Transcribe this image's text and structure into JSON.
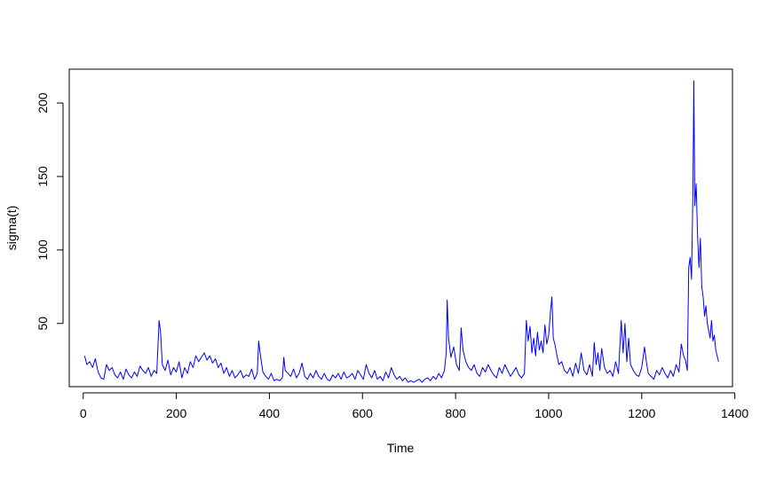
{
  "chart_data": {
    "type": "line",
    "xlabel": "Time",
    "ylabel": "sigma(t)",
    "xlim": [
      -30,
      1395
    ],
    "ylim": [
      7,
      223
    ],
    "x_ticks": [
      0,
      200,
      400,
      600,
      800,
      1000,
      1200,
      1400
    ],
    "x_tick_labels": [
      "0",
      "200",
      "400",
      "600",
      "800",
      "1000",
      "1200",
      "1400"
    ],
    "y_ticks": [
      50,
      100,
      150,
      200
    ],
    "y_tick_labels": [
      "50",
      "100",
      "150",
      "200"
    ],
    "grid": false,
    "legend": "none",
    "series": [
      {
        "color": "#0000ff",
        "x": [
          3,
          8,
          14,
          20,
          26,
          32,
          38,
          44,
          50,
          56,
          62,
          68,
          74,
          80,
          86,
          92,
          98,
          104,
          110,
          116,
          122,
          128,
          134,
          140,
          146,
          152,
          158,
          163,
          166,
          170,
          176,
          182,
          188,
          194,
          200,
          206,
          212,
          218,
          224,
          230,
          236,
          242,
          248,
          254,
          260,
          266,
          272,
          278,
          284,
          290,
          296,
          302,
          308,
          314,
          320,
          326,
          332,
          338,
          344,
          350,
          356,
          362,
          368,
          374,
          377,
          380,
          386,
          392,
          398,
          404,
          410,
          416,
          422,
          428,
          431,
          434,
          440,
          446,
          452,
          458,
          464,
          470,
          476,
          482,
          488,
          494,
          500,
          506,
          512,
          518,
          524,
          530,
          536,
          542,
          548,
          554,
          560,
          566,
          572,
          578,
          584,
          590,
          596,
          602,
          608,
          614,
          620,
          626,
          632,
          638,
          644,
          650,
          656,
          662,
          668,
          674,
          680,
          686,
          692,
          698,
          704,
          710,
          716,
          722,
          728,
          734,
          740,
          746,
          752,
          758,
          764,
          770,
          776,
          780,
          782,
          785,
          790,
          796,
          802,
          808,
          812,
          816,
          822,
          828,
          834,
          840,
          846,
          852,
          858,
          864,
          870,
          876,
          882,
          888,
          894,
          900,
          906,
          912,
          918,
          924,
          930,
          936,
          942,
          948,
          952,
          956,
          960,
          964,
          968,
          972,
          976,
          980,
          984,
          988,
          992,
          996,
          1000,
          1004,
          1007,
          1010,
          1014,
          1018,
          1022,
          1028,
          1034,
          1040,
          1046,
          1052,
          1058,
          1064,
          1070,
          1076,
          1082,
          1088,
          1094,
          1098,
          1102,
          1106,
          1110,
          1114,
          1120,
          1126,
          1132,
          1138,
          1144,
          1150,
          1156,
          1160,
          1164,
          1168,
          1172,
          1176,
          1182,
          1188,
          1194,
          1200,
          1206,
          1210,
          1214,
          1220,
          1226,
          1232,
          1238,
          1244,
          1250,
          1256,
          1262,
          1268,
          1274,
          1280,
          1285,
          1290,
          1294,
          1298,
          1301,
          1304,
          1307,
          1310,
          1312,
          1314,
          1317,
          1320,
          1323,
          1326,
          1329,
          1332,
          1335,
          1338,
          1341,
          1344,
          1347,
          1350,
          1353,
          1356,
          1359,
          1362,
          1365
        ],
        "values": [
          28,
          22,
          24,
          20,
          26,
          17,
          13,
          12,
          22,
          18,
          20,
          15,
          13,
          17,
          12,
          19,
          15,
          13,
          17,
          14,
          21,
          18,
          16,
          20,
          14,
          18,
          16,
          52,
          45,
          22,
          18,
          25,
          15,
          20,
          17,
          24,
          13,
          20,
          16,
          24,
          20,
          28,
          24,
          27,
          30,
          25,
          28,
          23,
          26,
          20,
          23,
          16,
          20,
          14,
          18,
          13,
          15,
          18,
          13,
          15,
          14,
          19,
          12,
          16,
          38,
          30,
          17,
          14,
          12,
          16,
          11,
          12,
          11,
          13,
          27,
          18,
          16,
          14,
          19,
          13,
          16,
          23,
          14,
          12,
          16,
          13,
          18,
          14,
          12,
          16,
          12,
          11,
          15,
          13,
          16,
          12,
          17,
          13,
          14,
          16,
          12,
          18,
          15,
          12,
          22,
          16,
          13,
          18,
          12,
          14,
          11,
          17,
          13,
          20,
          15,
          12,
          14,
          11,
          13,
          10,
          11,
          10,
          11,
          12,
          10,
          12,
          13,
          11,
          14,
          12,
          16,
          13,
          18,
          30,
          66,
          40,
          27,
          34,
          22,
          18,
          47,
          32,
          24,
          20,
          18,
          22,
          16,
          14,
          20,
          17,
          22,
          18,
          15,
          13,
          20,
          16,
          22,
          18,
          14,
          17,
          20,
          15,
          13,
          16,
          52,
          38,
          48,
          30,
          40,
          28,
          44,
          32,
          38,
          30,
          49,
          36,
          42,
          58,
          68,
          40,
          35,
          28,
          22,
          24,
          18,
          16,
          20,
          14,
          23,
          16,
          30,
          18,
          15,
          22,
          14,
          37,
          22,
          30,
          18,
          33,
          20,
          16,
          18,
          14,
          24,
          16,
          52,
          30,
          50,
          24,
          40,
          22,
          18,
          15,
          14,
          20,
          34,
          24,
          16,
          14,
          12,
          18,
          15,
          20,
          16,
          13,
          18,
          14,
          22,
          17,
          36,
          28,
          25,
          18,
          88,
          95,
          80,
          140,
          215,
          130,
          145,
          110,
          88,
          108,
          75,
          68,
          55,
          62,
          50,
          45,
          40,
          52,
          38,
          42,
          32,
          28,
          24
        ]
      }
    ]
  }
}
